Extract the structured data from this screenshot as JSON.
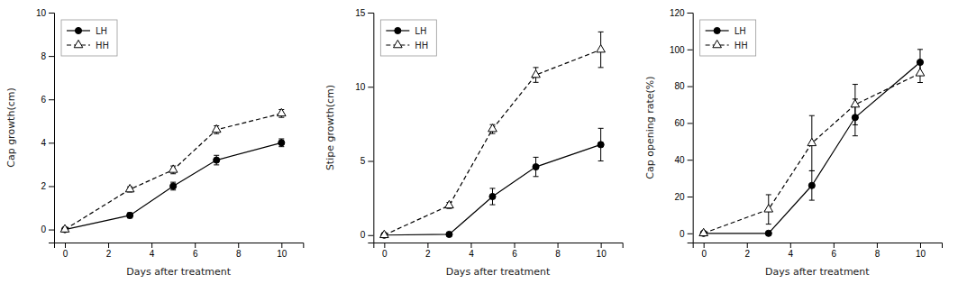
{
  "chart_data": [
    {
      "type": "line",
      "xlabel": "Days after treatment",
      "ylabel": "Cap growth(cm)",
      "x": [
        0,
        3,
        5,
        7,
        10
      ],
      "xlim": [
        -0.5,
        11
      ],
      "xticks": [
        0,
        2,
        4,
        6,
        8,
        10
      ],
      "ylim": [
        -0.6,
        10
      ],
      "yticks": [
        0,
        2,
        4,
        6,
        8,
        10
      ],
      "legend": "upper left",
      "series": [
        {
          "name": "LH",
          "color": "#000000",
          "marker": "circle",
          "line_style": "solid",
          "values": [
            0.0,
            0.65,
            2.0,
            3.2,
            4.0
          ],
          "errors": [
            0.05,
            0.12,
            0.18,
            0.22,
            0.18
          ]
        },
        {
          "name": "HH",
          "color": "#000000",
          "marker": "triangle-open",
          "line_style": "dashed",
          "values": [
            0.0,
            1.85,
            2.75,
            4.6,
            5.35
          ],
          "errors": [
            0.05,
            0.12,
            0.18,
            0.18,
            0.18
          ]
        }
      ]
    },
    {
      "type": "line",
      "xlabel": "Days after treatment",
      "ylabel": "Stipe growth(cm)",
      "x": [
        0,
        3,
        5,
        7,
        10
      ],
      "xlim": [
        -0.5,
        11
      ],
      "xticks": [
        0,
        2,
        4,
        6,
        8,
        10
      ],
      "ylim": [
        -0.5,
        15
      ],
      "yticks": [
        0,
        5,
        10,
        15
      ],
      "legend": "upper left",
      "series": [
        {
          "name": "LH",
          "color": "#000000",
          "marker": "circle",
          "line_style": "solid",
          "values": [
            0.0,
            0.05,
            2.6,
            4.6,
            6.1
          ],
          "errors": [
            0.05,
            0.1,
            0.55,
            0.65,
            1.1
          ]
        },
        {
          "name": "HH",
          "color": "#000000",
          "marker": "triangle-open",
          "line_style": "dashed",
          "values": [
            0.0,
            2.0,
            7.15,
            10.8,
            12.5
          ],
          "errors": [
            0.05,
            0.2,
            0.3,
            0.5,
            1.2
          ]
        }
      ]
    },
    {
      "type": "line",
      "xlabel": "Days after treatment",
      "ylabel": "Cap opening rate(%)",
      "x": [
        0,
        3,
        5,
        7,
        10
      ],
      "xlim": [
        -0.5,
        11
      ],
      "xticks": [
        0,
        2,
        4,
        6,
        8,
        10
      ],
      "ylim": [
        -5,
        120
      ],
      "yticks": [
        0,
        20,
        40,
        60,
        80,
        100,
        120
      ],
      "legend": "upper left",
      "series": [
        {
          "name": "LH",
          "color": "#000000",
          "marker": "circle",
          "line_style": "solid",
          "values": [
            0.0,
            0.0,
            26.0,
            63.0,
            93.0
          ],
          "errors": [
            0.5,
            0.5,
            8.0,
            10.0,
            7.0
          ]
        },
        {
          "name": "HH",
          "color": "#000000",
          "marker": "triangle-open",
          "line_style": "dashed",
          "values": [
            0.0,
            13.0,
            49.0,
            70.0,
            87.0
          ],
          "errors": [
            0.5,
            8.0,
            15.0,
            11.0,
            5.0
          ]
        }
      ]
    }
  ]
}
